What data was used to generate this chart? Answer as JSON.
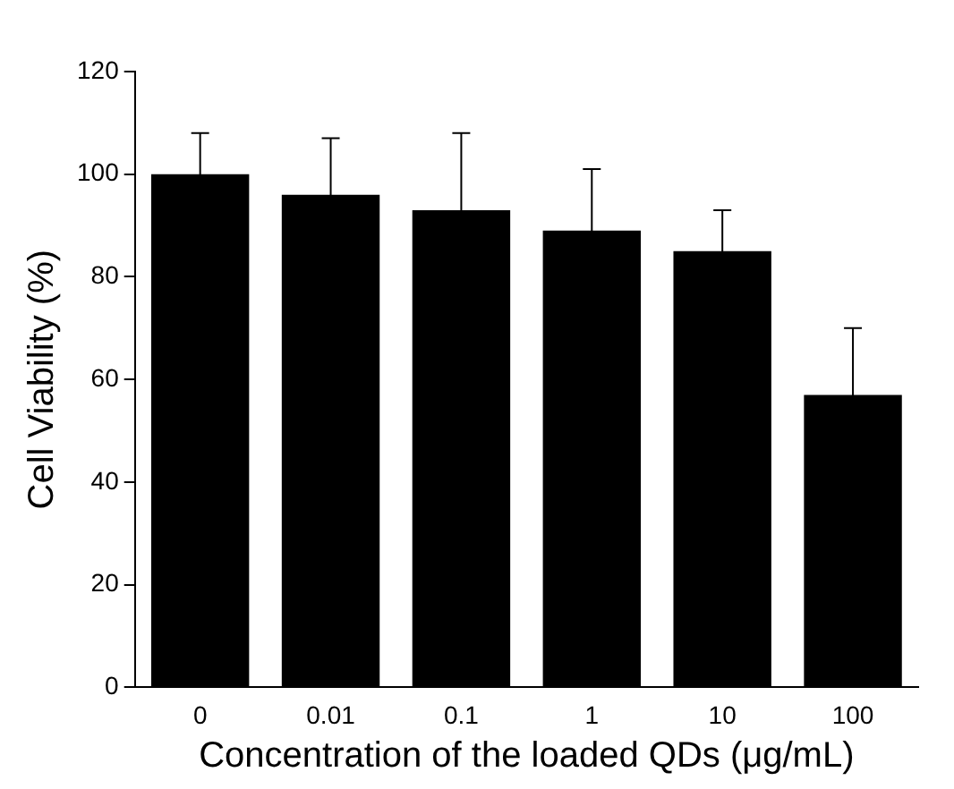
{
  "chart_data": {
    "type": "bar",
    "xlabel": "Concentration of the loaded QDs (μg/mL)",
    "ylabel": "Cell Viability (%)",
    "categories": [
      "0",
      "0.01",
      "0.1",
      "1",
      "10",
      "100"
    ],
    "values": [
      100,
      96,
      93,
      89,
      85,
      57
    ],
    "errors": [
      8,
      11,
      15,
      12,
      8,
      13
    ],
    "color": "#000000",
    "ylim": [
      0,
      120
    ],
    "yticks": [
      0,
      20,
      40,
      60,
      80,
      100,
      120
    ],
    "grid": false,
    "legend": false
  }
}
